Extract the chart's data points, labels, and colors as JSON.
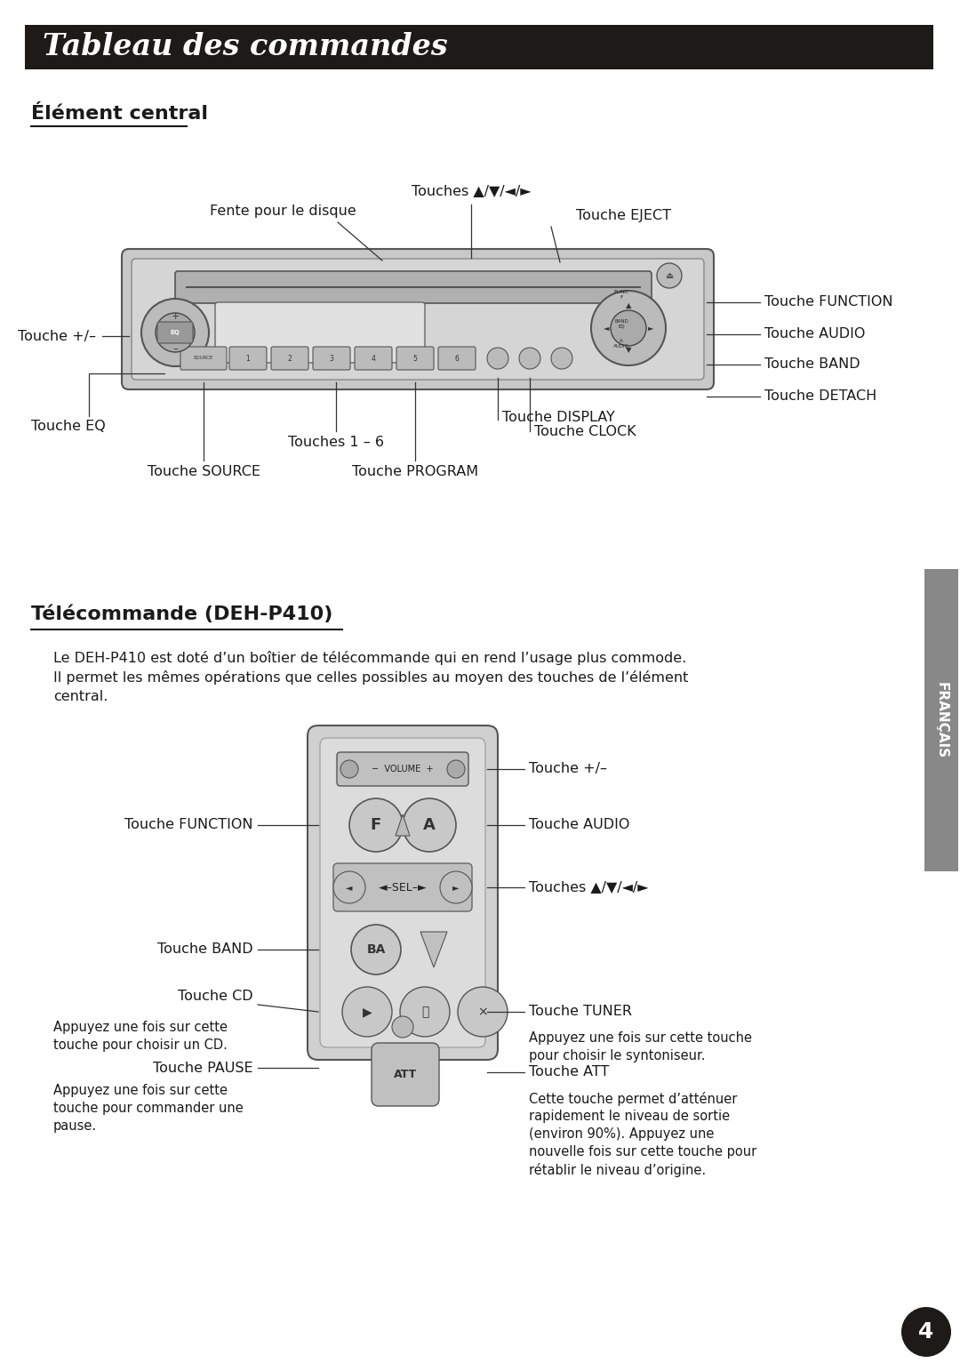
{
  "title": "Tableau des commandes",
  "title_bg": "#1e1a17",
  "title_color": "#ffffff",
  "section1_title": "Élément central",
  "section2_title": "Télécommande (DEH-P410)",
  "section2_body_line1": "Le DEH-P410 est doté d’un boîtier de télécommande qui en rend l’usage plus commode.",
  "section2_body_line2": "Il permet les mêmes opérations que celles possibles au moyen des touches de l’élément",
  "section2_body_line3": "central.",
  "page_number": "4",
  "bg_color": "#ffffff",
  "text_color": "#1a1a1a",
  "francais_label": "FRANÇAIS",
  "francais_bg": "#888888"
}
